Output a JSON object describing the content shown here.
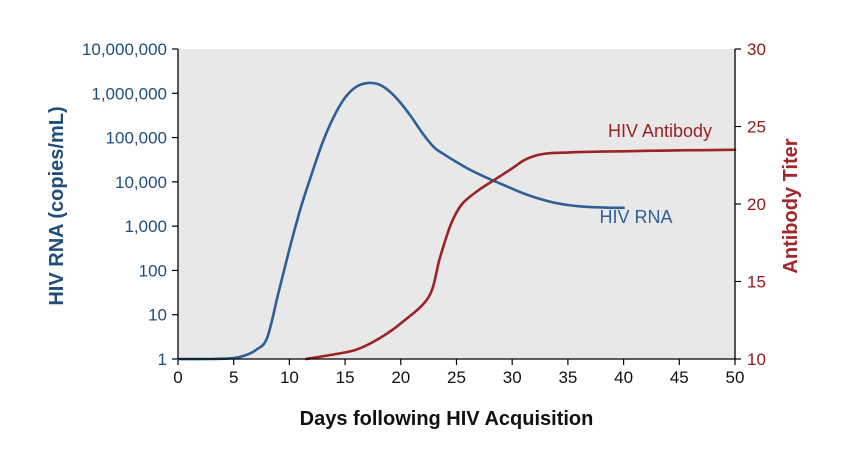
{
  "chart_data": {
    "type": "line",
    "xlabel": "Days following HIV Acquisition",
    "ylabel_left": "HIV RNA (copies/mL)",
    "ylabel_right": "Antibody Titer",
    "xlim": [
      0,
      50
    ],
    "ylim_left": [
      1,
      10000000
    ],
    "ylim_right": [
      10,
      30
    ],
    "left_scale": "log",
    "x_ticks": [
      "0",
      "5",
      "10",
      "15",
      "20",
      "25",
      "30",
      "35",
      "40",
      "45",
      "50"
    ],
    "y_left_ticks": [
      "1",
      "10",
      "100",
      "1,000",
      "10,000",
      "100,000",
      "1,000,000",
      "10,000,000"
    ],
    "y_right_ticks": [
      "10",
      "15",
      "20",
      "25",
      "30"
    ],
    "plot_background": "#e8e8e8",
    "series": [
      {
        "name": "HIV RNA",
        "axis": "left",
        "color": "#2e6096",
        "points": [
          [
            0,
            1
          ],
          [
            3,
            1
          ],
          [
            5,
            1.05
          ],
          [
            6,
            1.2
          ],
          [
            7,
            1.6
          ],
          [
            8,
            3
          ],
          [
            9,
            30
          ],
          [
            10,
            300
          ],
          [
            11,
            2500
          ],
          [
            12,
            15000
          ],
          [
            13,
            80000
          ],
          [
            14,
            300000
          ],
          [
            15,
            800000
          ],
          [
            16,
            1400000
          ],
          [
            17,
            1700000
          ],
          [
            18,
            1600000
          ],
          [
            19,
            1100000
          ],
          [
            20,
            600000
          ],
          [
            21,
            280000
          ],
          [
            22,
            120000
          ],
          [
            23,
            60000
          ],
          [
            24,
            40000
          ],
          [
            25,
            28000
          ],
          [
            26,
            20000
          ],
          [
            27,
            15000
          ],
          [
            28,
            11500
          ],
          [
            29,
            9000
          ],
          [
            30,
            7000
          ],
          [
            31,
            5500
          ],
          [
            32,
            4500
          ],
          [
            33,
            3800
          ],
          [
            34,
            3300
          ],
          [
            35,
            3000
          ],
          [
            36,
            2800
          ],
          [
            37,
            2700
          ],
          [
            38,
            2650
          ],
          [
            39,
            2600
          ],
          [
            40,
            2600
          ]
        ]
      },
      {
        "name": "HIV Antibody",
        "axis": "right",
        "color": "#9b2226",
        "points": [
          [
            11.5,
            10
          ],
          [
            14,
            10.3
          ],
          [
            16,
            10.6
          ],
          [
            18,
            11.3
          ],
          [
            20,
            12.3
          ],
          [
            22.5,
            14
          ],
          [
            23.5,
            16.5
          ],
          [
            24.5,
            18.7
          ],
          [
            25.5,
            20.0
          ],
          [
            27,
            20.9
          ],
          [
            28.5,
            21.6
          ],
          [
            30,
            22.3
          ],
          [
            31,
            22.8
          ],
          [
            32,
            23.1
          ],
          [
            33,
            23.25
          ],
          [
            34,
            23.3
          ],
          [
            35,
            23.32
          ],
          [
            36,
            23.35
          ],
          [
            38,
            23.38
          ],
          [
            40,
            23.4
          ],
          [
            42,
            23.43
          ],
          [
            44,
            23.45
          ],
          [
            46,
            23.47
          ],
          [
            48,
            23.48
          ],
          [
            50,
            23.5
          ]
        ]
      }
    ]
  }
}
